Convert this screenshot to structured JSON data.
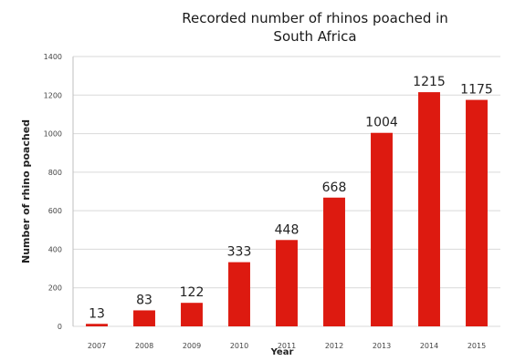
{
  "chart_data": {
    "type": "bar",
    "title_line1": "Recorded number of rhinos poached in",
    "title_line2": "South Africa",
    "xlabel": "Year",
    "ylabel": "Number of rhino  poached",
    "categories": [
      "2007",
      "2008",
      "2009",
      "2010",
      "2011",
      "2012",
      "2013",
      "2014",
      "2015"
    ],
    "values": [
      13,
      83,
      122,
      333,
      448,
      668,
      1004,
      1215,
      1175
    ],
    "value_labels": [
      "13",
      "83",
      "122",
      "333",
      "448",
      "668",
      "1004",
      "1215",
      "1175"
    ],
    "ylim": [
      0,
      1400
    ],
    "yticks": [
      0,
      200,
      400,
      600,
      800,
      1000,
      1200,
      1400
    ],
    "ytick_labels": [
      "0",
      "200",
      "400",
      "600",
      "800",
      "1000",
      "1200",
      "1400"
    ],
    "grid": true,
    "bar_color": "#dd1a10",
    "grid_color": "#d9d9d9"
  }
}
